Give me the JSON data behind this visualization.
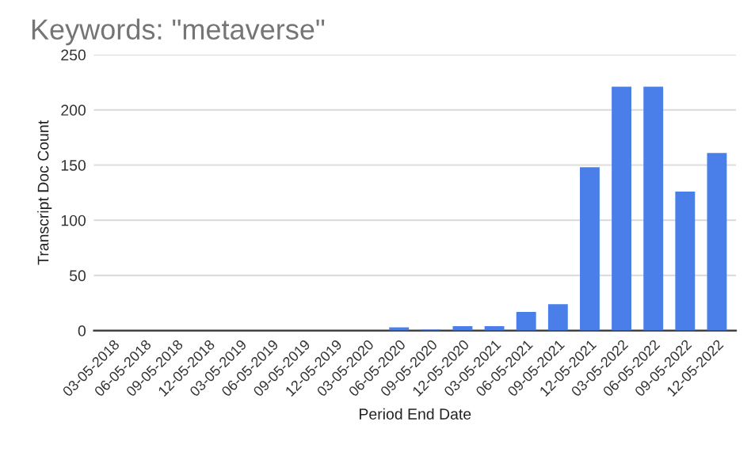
{
  "chart_data": {
    "type": "bar",
    "title": "Keywords: \"metaverse\"",
    "xlabel": "Period End Date",
    "ylabel": "Transcript Doc Count",
    "categories": [
      "03-05-2018",
      "06-05-2018",
      "09-05-2018",
      "12-05-2018",
      "03-05-2019",
      "06-05-2019",
      "09-05-2019",
      "12-05-2019",
      "03-05-2020",
      "06-05-2020",
      "09-05-2020",
      "12-05-2020",
      "03-05-2021",
      "06-05-2021",
      "09-05-2021",
      "12-05-2021",
      "03-05-2022",
      "06-05-2022",
      "09-05-2022",
      "12-05-2022"
    ],
    "values": [
      0,
      0,
      0,
      0,
      0,
      0,
      0,
      0,
      0,
      3,
      1,
      4,
      4,
      17,
      24,
      148,
      221,
      221,
      126,
      161
    ],
    "color": "#4a7fea",
    "ylim": [
      0,
      250
    ],
    "yticks": [
      0,
      50,
      100,
      150,
      200,
      250
    ],
    "grid": "y"
  }
}
